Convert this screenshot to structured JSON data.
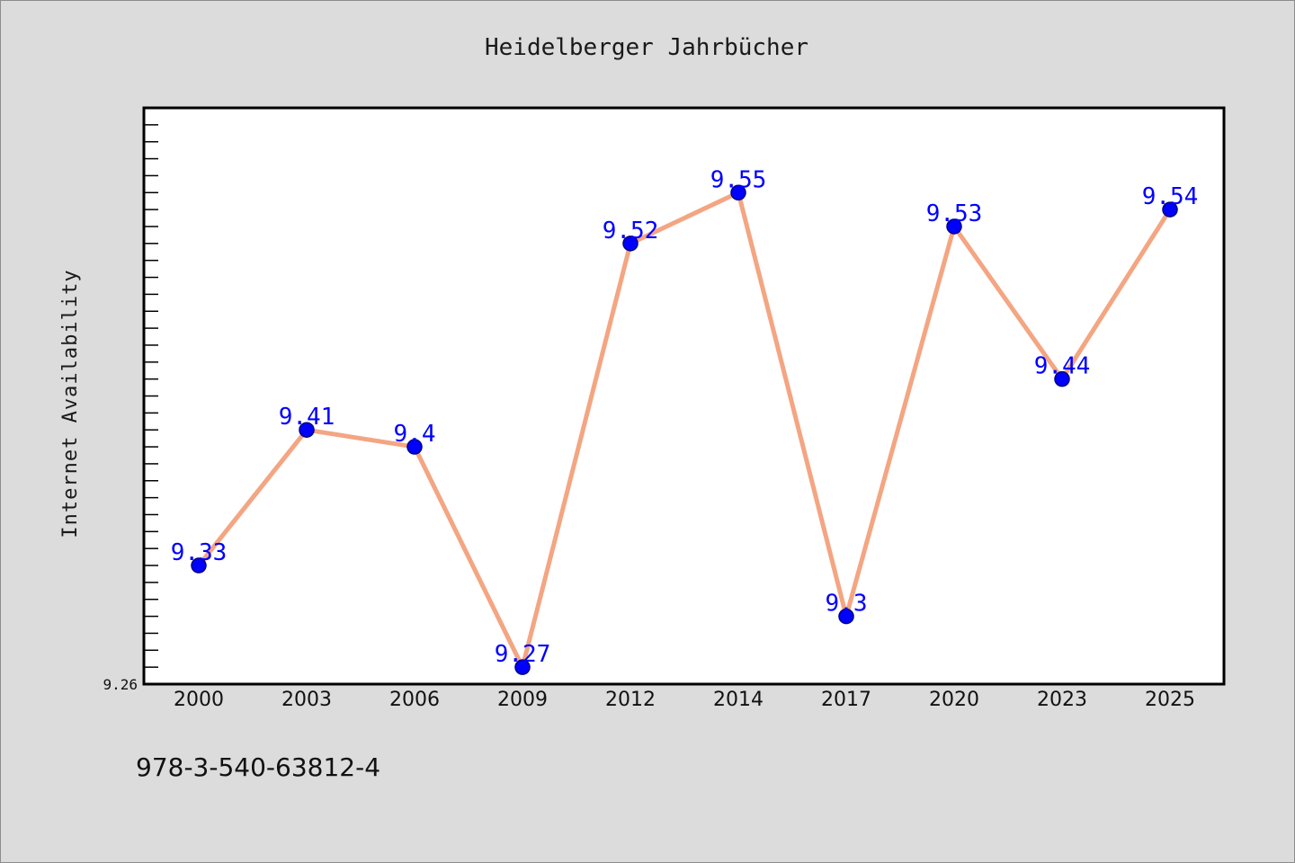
{
  "chart_data": {
    "type": "line",
    "title": "Heidelberger Jahrbücher",
    "xlabel": "",
    "ylabel": "Internet Availability",
    "categories": [
      "2000",
      "2003",
      "2006",
      "2009",
      "2012",
      "2014",
      "2017",
      "2020",
      "2023",
      "2025"
    ],
    "series": [
      {
        "values": [
          9.33,
          9.41,
          9.4,
          9.27,
          9.52,
          9.55,
          9.3,
          9.53,
          9.44,
          9.54
        ],
        "line_color": "#f4a582",
        "marker_color": "#0000ff",
        "label_color": "#0000ff"
      }
    ],
    "ylim": [
      9.26,
      9.6
    ],
    "ytick_labels": [
      "9.26"
    ],
    "grid": false,
    "legend": "none"
  },
  "footer": {
    "text": "978-3-540-63812-4"
  },
  "colors": {
    "figure_bg": "#dcdcdc",
    "plot_bg": "#ffffff",
    "axis": "#000000"
  }
}
